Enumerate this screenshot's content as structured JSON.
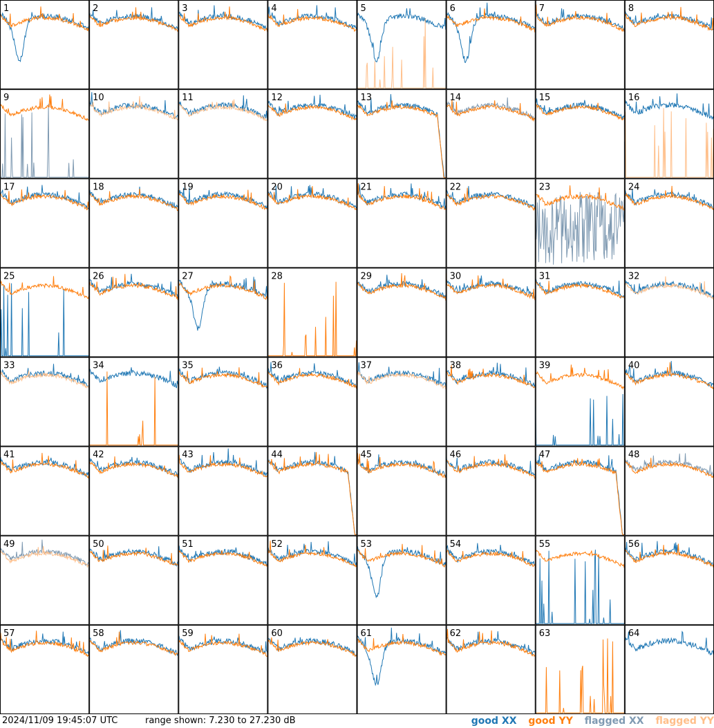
{
  "chart_data": {
    "type": "line",
    "layout": "small-multiples",
    "rows": 8,
    "cols": 8,
    "panels": [
      {
        "label": "1",
        "shape": "dip",
        "flag": "none"
      },
      {
        "label": "2",
        "shape": "normal",
        "flag": "none"
      },
      {
        "label": "3",
        "shape": "normal",
        "flag": "none"
      },
      {
        "label": "4",
        "shape": "normal",
        "flag": "none"
      },
      {
        "label": "5",
        "shape": "dip",
        "flag": "yy-spikes"
      },
      {
        "label": "6",
        "shape": "dip",
        "flag": "none"
      },
      {
        "label": "7",
        "shape": "normal",
        "flag": "none"
      },
      {
        "label": "8",
        "shape": "normal",
        "flag": "none"
      },
      {
        "label": "9",
        "shape": "normal",
        "flag": "xx-spikes"
      },
      {
        "label": "10",
        "shape": "normal",
        "flag": "yy-flagged"
      },
      {
        "label": "11",
        "shape": "normal",
        "flag": "yy-flagged"
      },
      {
        "label": "12",
        "shape": "normal",
        "flag": "none"
      },
      {
        "label": "13",
        "shape": "drop",
        "flag": "none"
      },
      {
        "label": "14",
        "shape": "normal",
        "flag": "xx-flagged"
      },
      {
        "label": "15",
        "shape": "normal",
        "flag": "none"
      },
      {
        "label": "16",
        "shape": "normal",
        "flag": "yy-spikes"
      },
      {
        "label": "17",
        "shape": "normal",
        "flag": "none"
      },
      {
        "label": "18",
        "shape": "normal",
        "flag": "none"
      },
      {
        "label": "19",
        "shape": "normal",
        "flag": "none"
      },
      {
        "label": "20",
        "shape": "normal",
        "flag": "none"
      },
      {
        "label": "21",
        "shape": "normal",
        "flag": "none"
      },
      {
        "label": "22",
        "shape": "normal",
        "flag": "none"
      },
      {
        "label": "23",
        "shape": "noisy",
        "flag": "xx-noisy"
      },
      {
        "label": "24",
        "shape": "normal",
        "flag": "none"
      },
      {
        "label": "25",
        "shape": "normal",
        "flag": "xx-spikes"
      },
      {
        "label": "26",
        "shape": "normal",
        "flag": "none"
      },
      {
        "label": "27",
        "shape": "dip",
        "flag": "none"
      },
      {
        "label": "28",
        "shape": "empty",
        "flag": "yy-spikes"
      },
      {
        "label": "29",
        "shape": "normal",
        "flag": "none"
      },
      {
        "label": "30",
        "shape": "normal",
        "flag": "none"
      },
      {
        "label": "31",
        "shape": "normal",
        "flag": "none"
      },
      {
        "label": "32",
        "shape": "normal",
        "flag": "yy-flagged"
      },
      {
        "label": "33",
        "shape": "normal",
        "flag": "yy-flagged"
      },
      {
        "label": "34",
        "shape": "normal",
        "flag": "yy-spikes"
      },
      {
        "label": "35",
        "shape": "normal",
        "flag": "none"
      },
      {
        "label": "36",
        "shape": "normal",
        "flag": "none"
      },
      {
        "label": "37",
        "shape": "normal",
        "flag": "yy-flagged"
      },
      {
        "label": "38",
        "shape": "normal",
        "flag": "none"
      },
      {
        "label": "39",
        "shape": "normal",
        "flag": "xx-spikes"
      },
      {
        "label": "40",
        "shape": "normal",
        "flag": "none"
      },
      {
        "label": "41",
        "shape": "normal",
        "flag": "none"
      },
      {
        "label": "42",
        "shape": "normal",
        "flag": "none"
      },
      {
        "label": "43",
        "shape": "normal",
        "flag": "none"
      },
      {
        "label": "44",
        "shape": "drop",
        "flag": "none"
      },
      {
        "label": "45",
        "shape": "normal",
        "flag": "none"
      },
      {
        "label": "46",
        "shape": "normal",
        "flag": "none"
      },
      {
        "label": "47",
        "shape": "drop",
        "flag": "none"
      },
      {
        "label": "48",
        "shape": "normal",
        "flag": "xx-flagged"
      },
      {
        "label": "49",
        "shape": "normal",
        "flag": "both-flagged"
      },
      {
        "label": "50",
        "shape": "normal",
        "flag": "none"
      },
      {
        "label": "51",
        "shape": "normal",
        "flag": "none"
      },
      {
        "label": "52",
        "shape": "normal",
        "flag": "none"
      },
      {
        "label": "53",
        "shape": "dip",
        "flag": "none"
      },
      {
        "label": "54",
        "shape": "normal",
        "flag": "none"
      },
      {
        "label": "55",
        "shape": "normal",
        "flag": "xx-spikes"
      },
      {
        "label": "56",
        "shape": "normal",
        "flag": "none"
      },
      {
        "label": "57",
        "shape": "normal",
        "flag": "none"
      },
      {
        "label": "58",
        "shape": "normal",
        "flag": "none"
      },
      {
        "label": "59",
        "shape": "normal",
        "flag": "none"
      },
      {
        "label": "60",
        "shape": "normal",
        "flag": "none"
      },
      {
        "label": "61",
        "shape": "dip",
        "flag": "none"
      },
      {
        "label": "62",
        "shape": "normal",
        "flag": "none"
      },
      {
        "label": "63",
        "shape": "empty",
        "flag": "yy-spikes"
      },
      {
        "label": "64",
        "shape": "normal",
        "flag": "xx-only"
      }
    ],
    "range_db": [
      7.23,
      27.23
    ],
    "legend_placement": "bottom-right"
  },
  "footer": {
    "timestamp": "2024/11/09 19:45:07 UTC",
    "range_text": "range shown: 7.230 to 27.230 dB"
  },
  "legend": {
    "good_xx": "good XX",
    "good_yy": "good YY",
    "flagged_xx": "flagged XX",
    "flagged_yy": "flagged YY"
  },
  "colors": {
    "good_xx": "#1f77b4",
    "good_yy": "#ff7f0e",
    "flagged_xx": "#7f9ab2",
    "flagged_yy": "#ffbf8a"
  }
}
